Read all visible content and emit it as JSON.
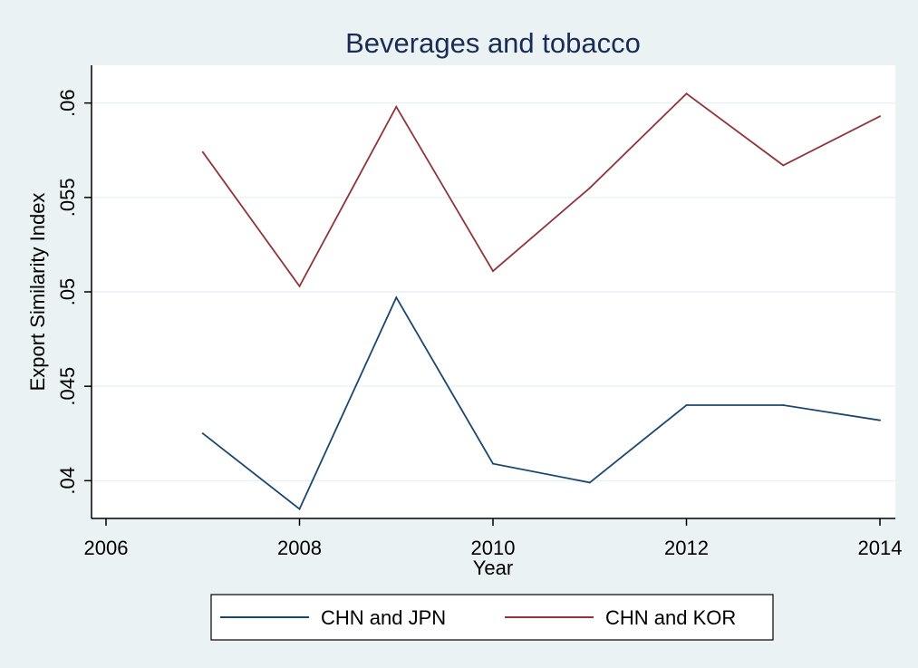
{
  "chart_data": {
    "type": "line",
    "title": "Beverages and tobacco",
    "xlabel": "Year",
    "ylabel": "Export Similarity Index",
    "xlim": [
      2006,
      2014
    ],
    "ylim": [
      0.038,
      0.062
    ],
    "x_ticks": [
      2006,
      2008,
      2010,
      2012,
      2014
    ],
    "x_tick_labels": [
      "2006",
      "2008",
      "2010",
      "2012",
      "2014"
    ],
    "y_ticks": [
      0.04,
      0.045,
      0.05,
      0.055,
      0.06
    ],
    "y_tick_labels": [
      ".04",
      ".045",
      ".05",
      ".055",
      ".06"
    ],
    "grid": true,
    "legend_position": "bottom",
    "x": [
      2007,
      2008,
      2009,
      2010,
      2011,
      2012,
      2013,
      2014
    ],
    "series": [
      {
        "name": "CHN and JPN",
        "color": "#1a476f",
        "values": [
          0.0425,
          0.0385,
          0.0497,
          0.0409,
          0.0399,
          0.044,
          0.044,
          0.0432
        ]
      },
      {
        "name": "CHN and KOR",
        "color": "#90353b",
        "values": [
          0.0574,
          0.0503,
          0.0598,
          0.0511,
          0.0555,
          0.0605,
          0.0567,
          0.0593
        ]
      }
    ]
  }
}
